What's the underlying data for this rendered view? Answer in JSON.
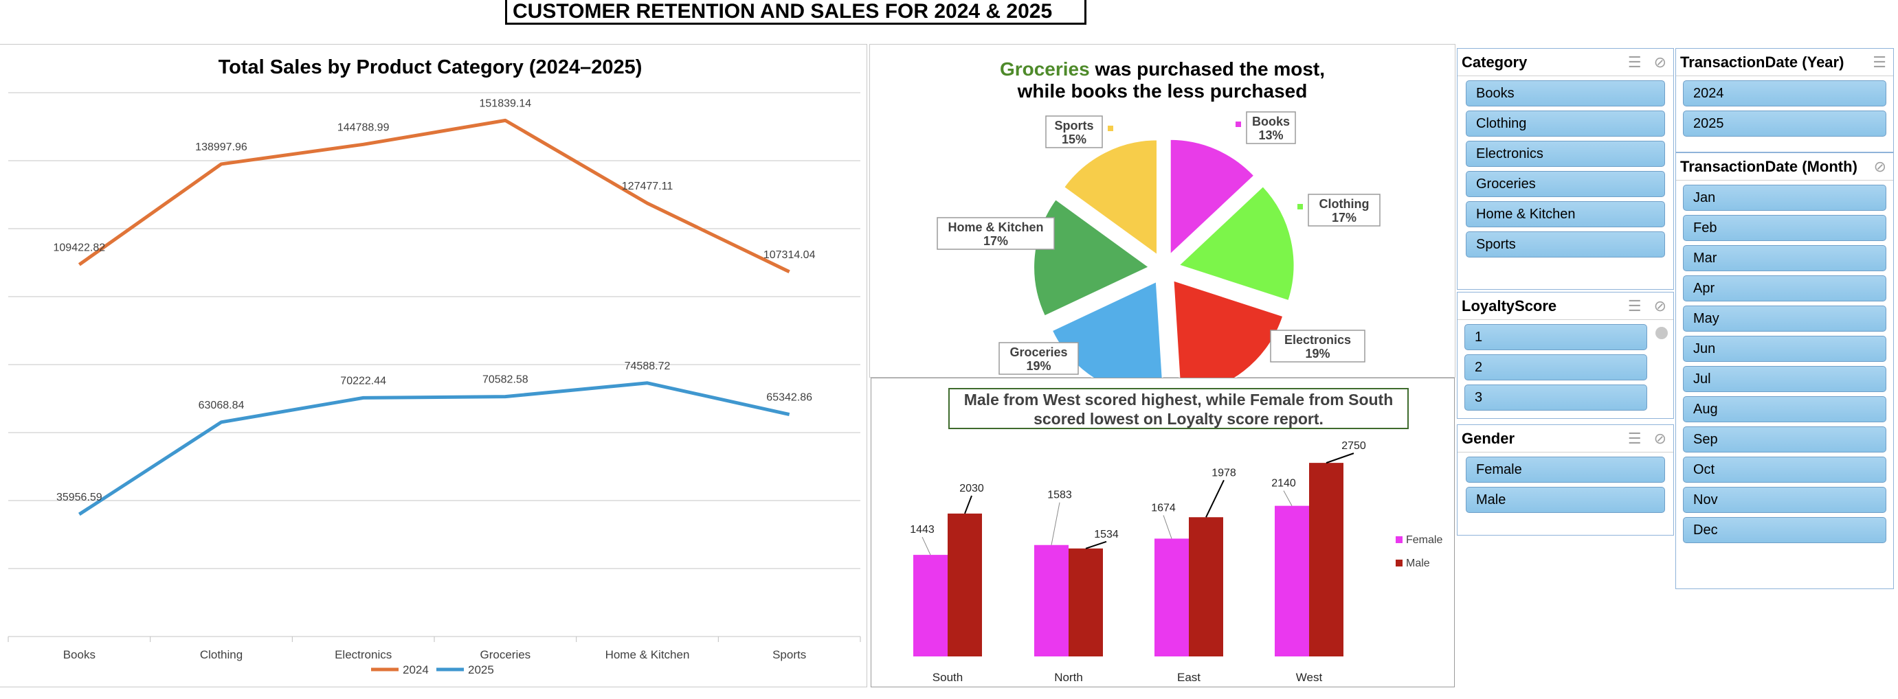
{
  "page_title": "CUSTOMER RETENTION AND SALES FOR 2024  & 2025",
  "line_chart": {
    "title": "Total Sales by Product Category (2024–2025)",
    "chart_data": {
      "type": "line",
      "categories": [
        "Books",
        "Clothing",
        "Electronics",
        "Groceries",
        "Home & Kitchen",
        "Sports"
      ],
      "series": [
        {
          "name": "2024",
          "values": [
            109422.82,
            138997.96,
            144788.99,
            151839.14,
            127477.11,
            107314.04
          ],
          "color": "#e07438"
        },
        {
          "name": "2025",
          "values": [
            35956.59,
            63068.84,
            70222.44,
            70582.58,
            74588.72,
            65342.86
          ],
          "color": "#3f97cf"
        }
      ],
      "value_labels_2024": [
        "109422.82",
        "138997.96",
        "144788.99",
        "151839.14",
        "127477.11",
        "107314.04"
      ],
      "value_labels_2025": [
        "35956.59",
        "63068.84",
        "70222.44",
        "70582.58",
        "74588.72",
        "65342.86"
      ],
      "ylim": [
        0,
        160000
      ],
      "grid": true,
      "legend_position": "bottom"
    }
  },
  "pie_chart": {
    "title_highlight": "Groceries",
    "title_rest1": " was purchased the most,",
    "title_line2": "while books the less purchased",
    "highlight_color": "#4e8a2a",
    "chart_data": {
      "type": "pie",
      "labels": [
        "Books",
        "Clothing",
        "Electronics",
        "Groceries",
        "Home & Kitchen",
        "Sports"
      ],
      "values": [
        13,
        17,
        19,
        19,
        17,
        15
      ],
      "percent_labels": [
        "13%",
        "17%",
        "19%",
        "19%",
        "17%",
        "15%"
      ],
      "colors": [
        "#e83ce8",
        "#7cf54a",
        "#e93325",
        "#54aee8",
        "#52ad5a",
        "#f7cd4a"
      ]
    }
  },
  "bar_chart": {
    "title_line1": "Male from West scored highest, while Female from South",
    "title_line2": "scored lowest on Loyalty score report.",
    "chart_data": {
      "type": "bar",
      "categories": [
        "South",
        "North",
        "East",
        "West"
      ],
      "series": [
        {
          "name": "Female",
          "values": [
            1443,
            1583,
            1674,
            2140
          ],
          "color": "#ea38ef"
        },
        {
          "name": "Male",
          "values": [
            2030,
            1534,
            1978,
            2750
          ],
          "color": "#af1f17"
        }
      ],
      "labels_female": [
        "1443",
        "1583",
        "1674",
        "2140"
      ],
      "labels_male": [
        "2030",
        "1534",
        "1978",
        "2750"
      ],
      "legend_position": "right"
    }
  },
  "slicers": {
    "category": {
      "title": "Category",
      "items": [
        "Books",
        "Clothing",
        "Electronics",
        "Groceries",
        "Home & Kitchen",
        "Sports"
      ]
    },
    "loyalty": {
      "title": "LoyaltyScore",
      "items": [
        "1",
        "2",
        "3"
      ]
    },
    "gender": {
      "title": "Gender",
      "items": [
        "Female",
        "Male"
      ]
    },
    "year": {
      "title": "TransactionDate (Year)",
      "items": [
        "2024",
        "2025"
      ]
    },
    "month": {
      "title": "TransactionDate (Month)",
      "items": [
        "Jan",
        "Feb",
        "Mar",
        "Apr",
        "May",
        "Jun",
        "Jul",
        "Aug",
        "Sep",
        "Oct",
        "Nov",
        "Dec"
      ]
    }
  },
  "icons": {
    "multi_select": "multi-select-icon",
    "clear_filter": "clear-filter-icon"
  }
}
